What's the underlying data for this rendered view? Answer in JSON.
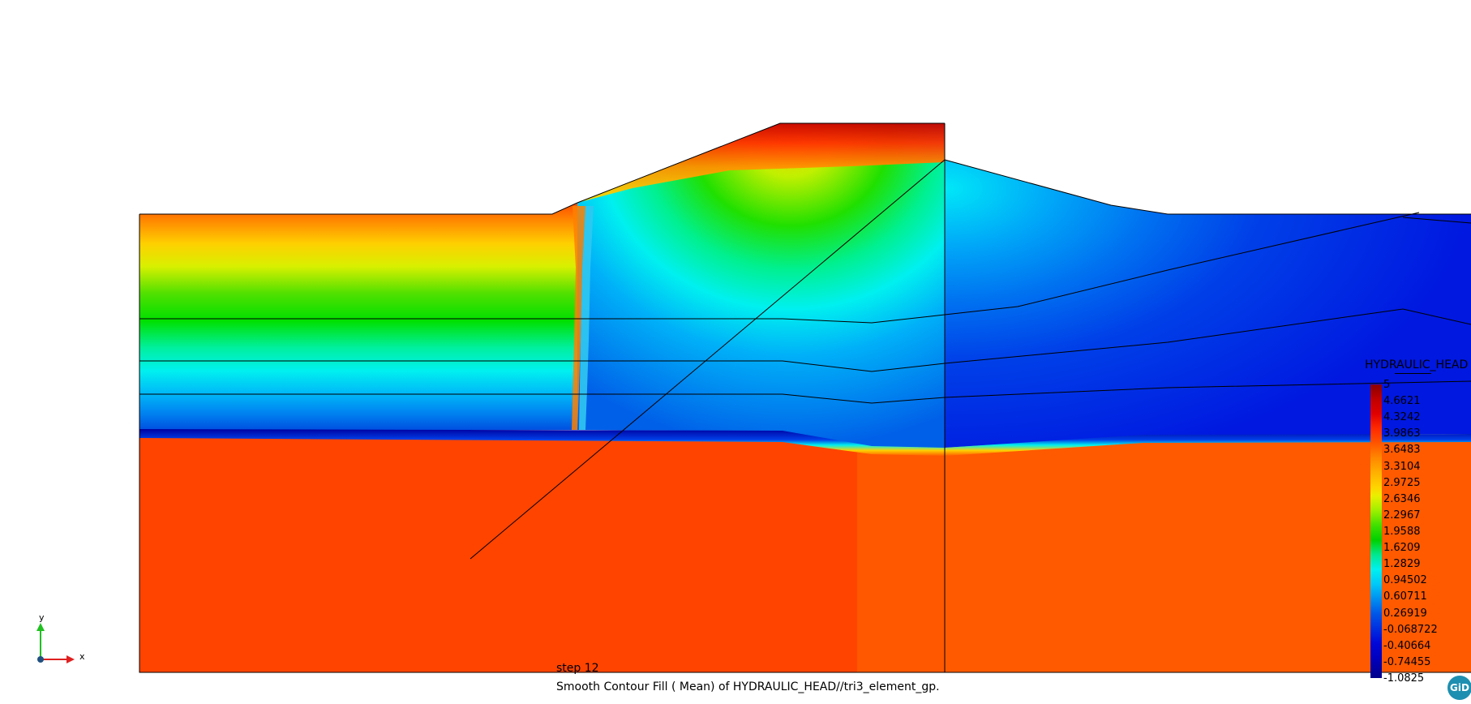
{
  "legend": {
    "title": "HYDRAULIC_HEAD",
    "ticks": [
      "5",
      "4.6621",
      "4.3242",
      "3.9863",
      "3.6483",
      "3.3104",
      "2.9725",
      "2.6346",
      "2.2967",
      "1.9588",
      "1.6209",
      "1.2829",
      "0.94502",
      "0.60711",
      "0.26919",
      "-0.068722",
      "-0.40664",
      "-0.74455",
      "-1.0825"
    ]
  },
  "step_label": "step 12",
  "caption": "Smooth Contour Fill ( Mean) of HYDRAULIC_HEAD//tri3_element_gp.",
  "axes": {
    "y": "y",
    "x": "x"
  },
  "logo": "GiD",
  "colors": {
    "foundation": "#ff4400",
    "foundation_right": "#ff5a00",
    "deep_blue": "#0018e0",
    "mid_blue": "#0090f0",
    "cyan": "#00f0f0",
    "green": "#00e000",
    "yellow": "#ffe000",
    "orange": "#ff8000",
    "red": "#d00000"
  }
}
